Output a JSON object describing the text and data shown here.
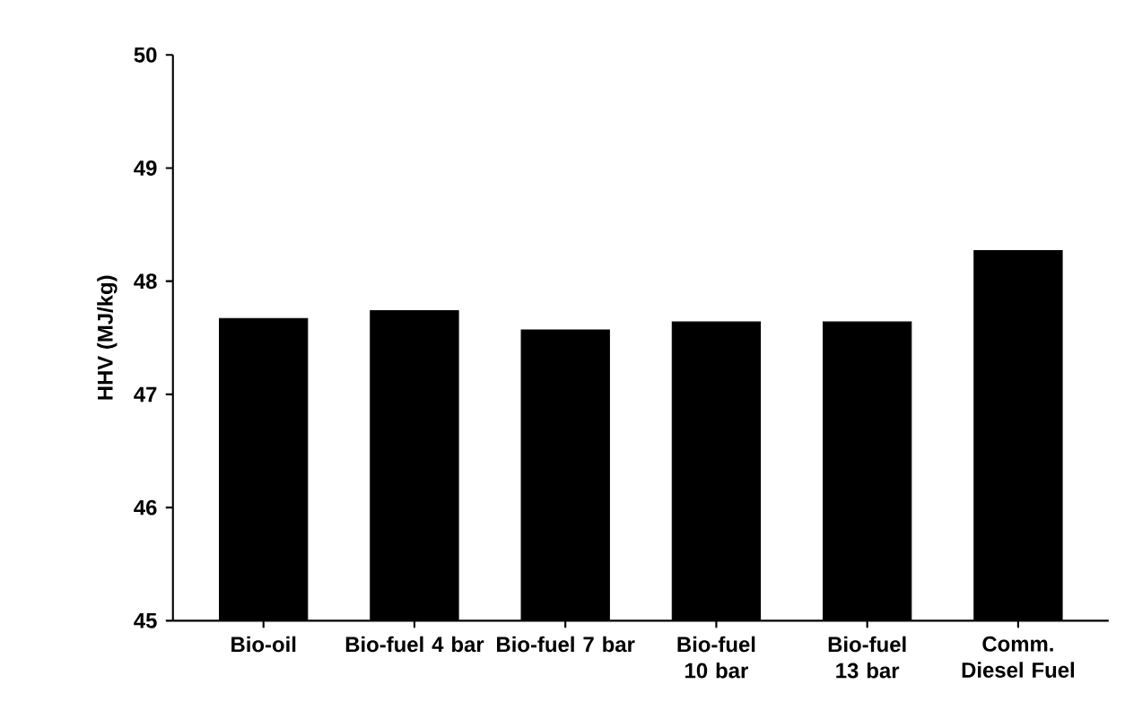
{
  "chart_data": {
    "type": "bar",
    "ylabel": "HHV (MJ/kg)",
    "categories": [
      "Bio-oil",
      "Bio-fuel 4 bar",
      "Bio-fuel 7 bar",
      "Bio-fuel 10 bar",
      "Bio-fuel 13 bar",
      "Comm. Diesel Fuel"
    ],
    "values": [
      47.67,
      47.74,
      47.57,
      47.64,
      47.64,
      48.27
    ],
    "color": "#000000",
    "ylim": [
      45,
      50
    ],
    "yticks": [
      45,
      46,
      47,
      48,
      49,
      50
    ],
    "grid": false
  }
}
